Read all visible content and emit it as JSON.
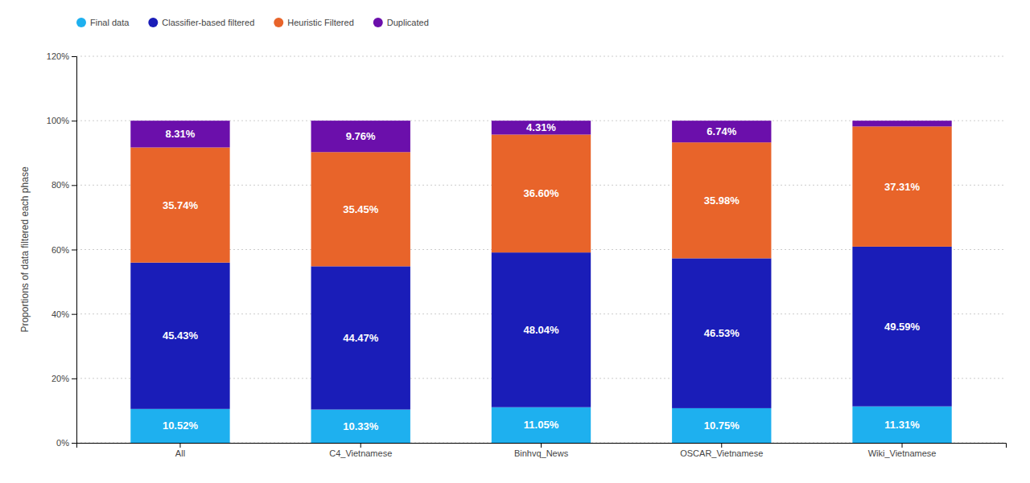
{
  "chart_data": {
    "type": "bar",
    "stacked": true,
    "categories": [
      "All",
      "C4_Vietnamese",
      "Binhvq_News",
      "OSCAR_Vietnamese",
      "Wiki_Vietnamese"
    ],
    "series": [
      {
        "name": "Final data",
        "color": "#1EB0EF",
        "values": [
          10.52,
          10.33,
          11.05,
          10.75,
          11.31
        ],
        "value_labels": [
          "10.52%",
          "10.33%",
          "11.05%",
          "10.75%",
          "11.31%"
        ]
      },
      {
        "name": "Classifier-based filtered",
        "color": "#1A1DB8",
        "values": [
          45.43,
          44.47,
          48.04,
          46.53,
          49.59
        ],
        "value_labels": [
          "45.43%",
          "44.47%",
          "48.04%",
          "46.53%",
          "49.59%"
        ]
      },
      {
        "name": "Heuristic Filtered",
        "color": "#E8642A",
        "values": [
          35.74,
          35.45,
          36.6,
          35.98,
          37.31
        ],
        "value_labels": [
          "35.74%",
          "35.45%",
          "36.60%",
          "35.98%",
          "37.31%"
        ]
      },
      {
        "name": "Duplicated",
        "color": "#6B0FAB",
        "values": [
          8.31,
          9.76,
          4.31,
          6.74,
          1.79
        ],
        "value_labels": [
          "8.31%",
          "9.76%",
          "4.31%",
          "6.74%",
          null
        ]
      }
    ],
    "ylabel": "Proportions of data filtered each phase",
    "ylim": [
      0,
      120
    ],
    "yticks": [
      {
        "value": 0,
        "label": "0%"
      },
      {
        "value": 20,
        "label": "20%"
      },
      {
        "value": 40,
        "label": "40%"
      },
      {
        "value": 60,
        "label": "60%"
      },
      {
        "value": 80,
        "label": "80%"
      },
      {
        "value": 100,
        "label": "100%"
      },
      {
        "value": 120,
        "label": "120%"
      }
    ],
    "grid": true,
    "legend": "top",
    "data_labels": true
  }
}
